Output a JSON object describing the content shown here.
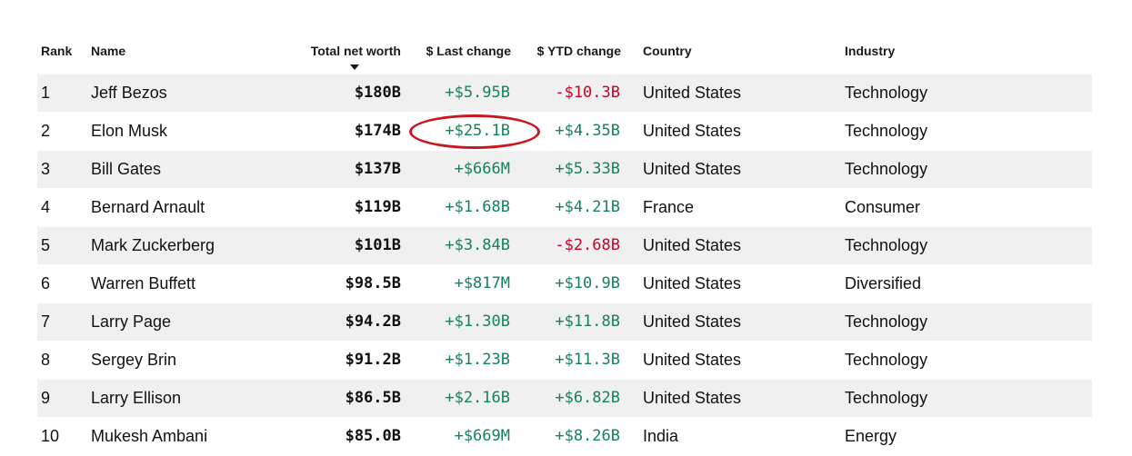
{
  "columns": {
    "rank": "Rank",
    "name": "Name",
    "worth": "Total net worth",
    "last": "$ Last change",
    "ytd": "$ YTD change",
    "country": "Country",
    "industry": "Industry"
  },
  "sort": {
    "column": "Total net worth",
    "direction": "descending"
  },
  "colors": {
    "positive": "#13835a",
    "negative": "#cc0025",
    "highlight_ring": "#c8171e",
    "row_shade": "#f0f0f0"
  },
  "highlight": {
    "row": 2,
    "column": "$ Last change"
  },
  "rows": [
    {
      "rank": "1",
      "name": "Jeff Bezos",
      "worth": "$180B",
      "last": "+$5.95B",
      "last_dir": "pos",
      "ytd": "-$10.3B",
      "ytd_dir": "neg",
      "country": "United States",
      "industry": "Technology"
    },
    {
      "rank": "2",
      "name": "Elon Musk",
      "worth": "$174B",
      "last": "+$25.1B",
      "last_dir": "pos",
      "ytd": "+$4.35B",
      "ytd_dir": "pos",
      "country": "United States",
      "industry": "Technology"
    },
    {
      "rank": "3",
      "name": "Bill Gates",
      "worth": "$137B",
      "last": "+$666M",
      "last_dir": "pos",
      "ytd": "+$5.33B",
      "ytd_dir": "pos",
      "country": "United States",
      "industry": "Technology"
    },
    {
      "rank": "4",
      "name": "Bernard Arnault",
      "worth": "$119B",
      "last": "+$1.68B",
      "last_dir": "pos",
      "ytd": "+$4.21B",
      "ytd_dir": "pos",
      "country": "France",
      "industry": "Consumer"
    },
    {
      "rank": "5",
      "name": "Mark Zuckerberg",
      "worth": "$101B",
      "last": "+$3.84B",
      "last_dir": "pos",
      "ytd": "-$2.68B",
      "ytd_dir": "neg",
      "country": "United States",
      "industry": "Technology"
    },
    {
      "rank": "6",
      "name": "Warren Buffett",
      "worth": "$98.5B",
      "last": "+$817M",
      "last_dir": "pos",
      "ytd": "+$10.9B",
      "ytd_dir": "pos",
      "country": "United States",
      "industry": "Diversified"
    },
    {
      "rank": "7",
      "name": "Larry Page",
      "worth": "$94.2B",
      "last": "+$1.30B",
      "last_dir": "pos",
      "ytd": "+$11.8B",
      "ytd_dir": "pos",
      "country": "United States",
      "industry": "Technology"
    },
    {
      "rank": "8",
      "name": "Sergey Brin",
      "worth": "$91.2B",
      "last": "+$1.23B",
      "last_dir": "pos",
      "ytd": "+$11.3B",
      "ytd_dir": "pos",
      "country": "United States",
      "industry": "Technology"
    },
    {
      "rank": "9",
      "name": "Larry Ellison",
      "worth": "$86.5B",
      "last": "+$2.16B",
      "last_dir": "pos",
      "ytd": "+$6.82B",
      "ytd_dir": "pos",
      "country": "United States",
      "industry": "Technology"
    },
    {
      "rank": "10",
      "name": "Mukesh Ambani",
      "worth": "$85.0B",
      "last": "+$669M",
      "last_dir": "pos",
      "ytd": "+$8.26B",
      "ytd_dir": "pos",
      "country": "India",
      "industry": "Energy"
    }
  ]
}
